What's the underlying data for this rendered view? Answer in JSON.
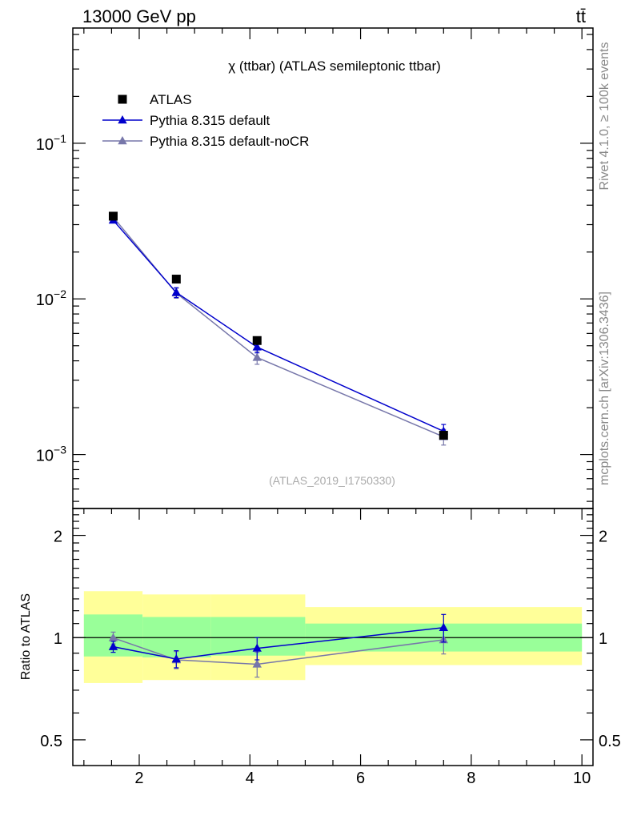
{
  "header": {
    "energy_label": "13000 GeV pp",
    "process_label": "tt̄"
  },
  "side_labels": {
    "rivet": "Rivet 4.1.0, ≥ 100k events",
    "source": "mcplots.cern.ch [arXiv:1306.3436]"
  },
  "chart_data": {
    "type": "line",
    "title": "χ (ttbar) (ATLAS semileptonic ttbar)",
    "analysis_id": "(ATLAS_2019_I1750330)",
    "xlim": [
      0.8,
      10.2
    ],
    "x_ticks": [
      "2",
      "4",
      "6",
      "8",
      "10"
    ],
    "main": {
      "yscale": "log",
      "ylim": [
        0.00045,
        0.55
      ],
      "y_ticks": [
        {
          "base": "10",
          "exp": "−1",
          "value": 0.1
        },
        {
          "base": "10",
          "exp": "−2",
          "value": 0.01
        },
        {
          "base": "10",
          "exp": "−3",
          "value": 0.001
        }
      ]
    },
    "ratio": {
      "ylabel": "Ratio to ATLAS",
      "yscale": "log",
      "ylim": [
        0.42,
        2.4
      ],
      "y_ticks": [
        {
          "label": "2",
          "value": 2
        },
        {
          "label": "1",
          "value": 1
        },
        {
          "label": "0.5",
          "value": 0.5
        }
      ],
      "bands": [
        {
          "xlo": 1.0,
          "xhi": 2.06,
          "inner": [
            0.88,
            1.17
          ],
          "outer": [
            0.735,
            1.37
          ]
        },
        {
          "xlo": 2.06,
          "xhi": 3.3,
          "inner": [
            0.875,
            1.15
          ],
          "outer": [
            0.75,
            1.34
          ]
        },
        {
          "xlo": 3.3,
          "xhi": 5.0,
          "inner": [
            0.885,
            1.15
          ],
          "outer": [
            0.75,
            1.34
          ]
        },
        {
          "xlo": 5.0,
          "xhi": 10.0,
          "inner": [
            0.91,
            1.1
          ],
          "outer": [
            0.83,
            1.23
          ]
        }
      ]
    },
    "series": [
      {
        "name": "ATLAS",
        "color": "#000000",
        "marker": "square",
        "x": [
          1.53,
          2.67,
          4.13,
          7.5
        ],
        "y": [
          0.034,
          0.0134,
          0.0054,
          0.00133
        ],
        "ratio": [
          1,
          1,
          1,
          1
        ],
        "ratio_err": [
          0,
          0,
          0,
          0
        ]
      },
      {
        "name": "Pythia 8.315 default",
        "color": "#0000cc",
        "marker": "triangle",
        "x": [
          1.53,
          2.67,
          4.13,
          7.5
        ],
        "y": [
          0.032,
          0.011,
          0.0049,
          0.00141
        ],
        "y_err": [
          0.0012,
          0.0008,
          0.0004,
          0.00015
        ],
        "ratio": [
          0.94,
          0.865,
          0.93,
          1.07
        ],
        "ratio_err": [
          0.035,
          0.05,
          0.07,
          0.1
        ]
      },
      {
        "name": "Pythia 8.315 default-noCR",
        "color": "#7777aa",
        "marker": "triangle",
        "x": [
          1.53,
          2.67,
          4.13,
          7.5
        ],
        "y": [
          0.0335,
          0.0109,
          0.0042,
          0.0013
        ],
        "y_err": [
          0.0012,
          0.0008,
          0.0004,
          0.00015
        ],
        "ratio": [
          0.998,
          0.86,
          0.835,
          0.985
        ],
        "ratio_err": [
          0.04,
          0.05,
          0.07,
          0.09
        ]
      }
    ]
  }
}
